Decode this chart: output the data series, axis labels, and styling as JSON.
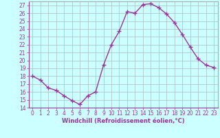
{
  "x": [
    0,
    1,
    2,
    3,
    4,
    5,
    6,
    7,
    8,
    9,
    10,
    11,
    12,
    13,
    14,
    15,
    16,
    17,
    18,
    19,
    20,
    21,
    22,
    23
  ],
  "y": [
    18.0,
    17.5,
    16.5,
    16.2,
    15.5,
    14.9,
    14.4,
    15.5,
    16.0,
    19.4,
    22.0,
    23.7,
    26.2,
    26.0,
    27.1,
    27.2,
    26.7,
    25.9,
    24.8,
    23.3,
    21.7,
    20.2,
    19.4,
    19.1
  ],
  "line_color": "#993399",
  "marker": "+",
  "markersize": 4,
  "linewidth": 1.0,
  "background_color": "#ccffff",
  "grid_color": "#aabbbb",
  "xlabel": "Windchill (Refroidissement éolien,°C)",
  "xlabel_color": "#993399",
  "tick_color": "#993399",
  "ylim": [
    14,
    27.5
  ],
  "xlim": [
    -0.5,
    23.5
  ],
  "yticks": [
    14,
    15,
    16,
    17,
    18,
    19,
    20,
    21,
    22,
    23,
    24,
    25,
    26,
    27
  ],
  "xticks": [
    0,
    1,
    2,
    3,
    4,
    5,
    6,
    7,
    8,
    9,
    10,
    11,
    12,
    13,
    14,
    15,
    16,
    17,
    18,
    19,
    20,
    21,
    22,
    23
  ],
  "tick_fontsize": 5.5,
  "xlabel_fontsize": 6.0,
  "border_color": "#993399",
  "spine_color": "#aaaaaa"
}
